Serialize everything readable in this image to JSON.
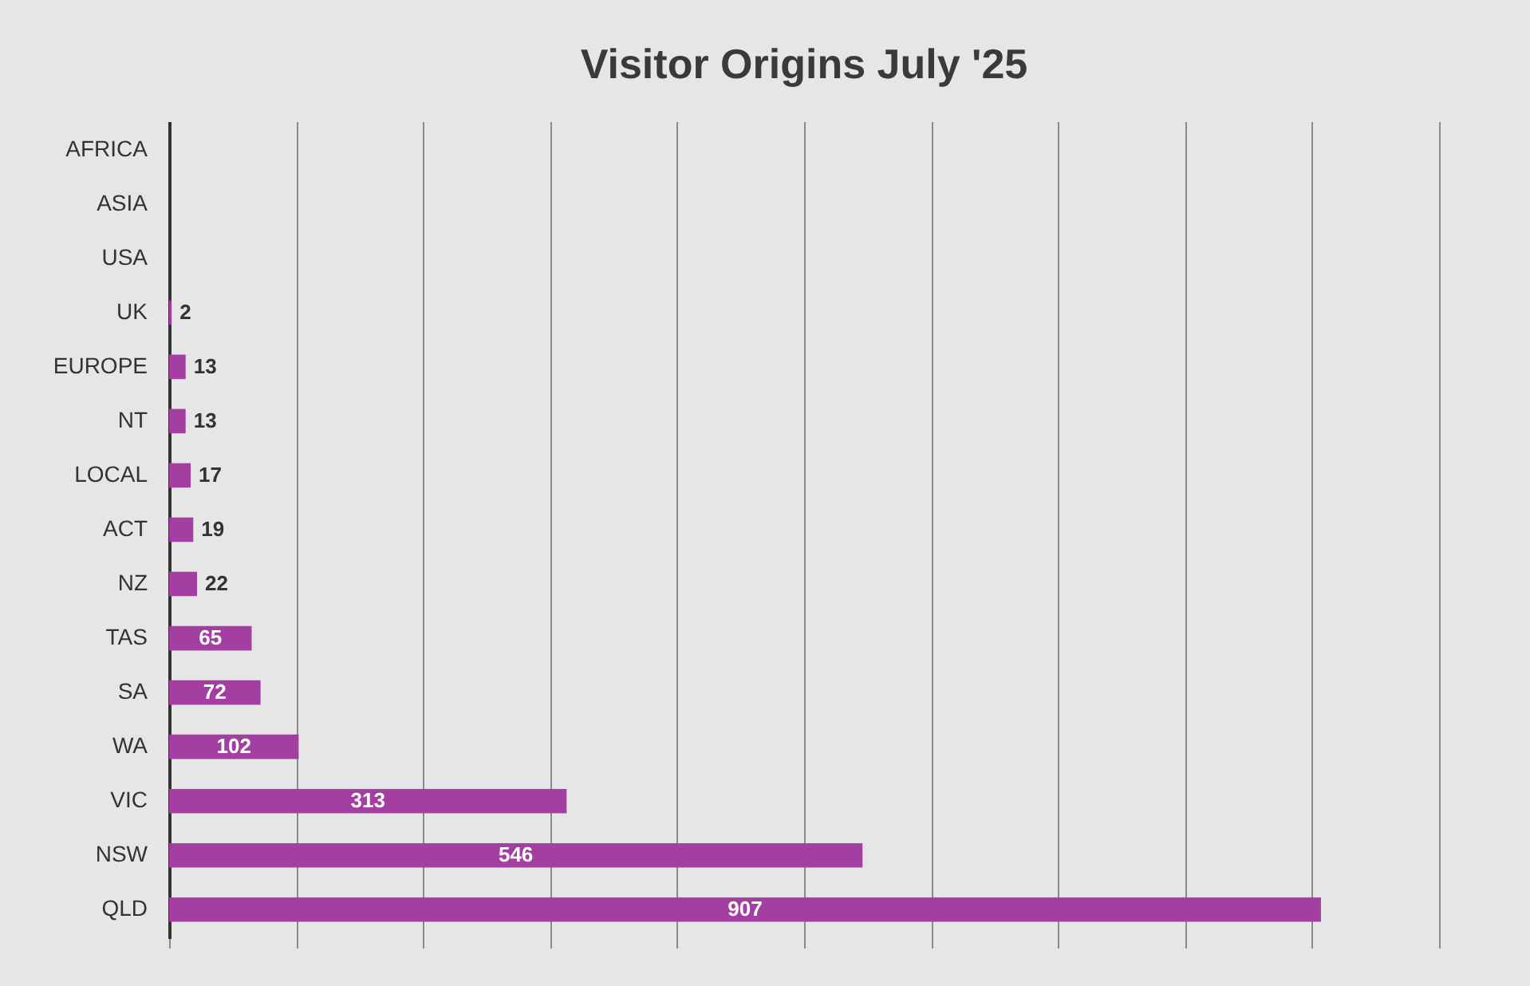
{
  "chart_data": {
    "type": "bar",
    "orientation": "horizontal",
    "title": "Visitor Origins July '25",
    "categories": [
      "AFRICA",
      "ASIA",
      "USA",
      "UK",
      "EUROPE",
      "NT",
      "LOCAL",
      "ACT",
      "NZ",
      "TAS",
      "SA",
      "WA",
      "VIC",
      "NSW",
      "QLD"
    ],
    "values": [
      0,
      0,
      0,
      2,
      13,
      13,
      17,
      19,
      22,
      65,
      72,
      102,
      313,
      546,
      907
    ],
    "value_labels": [
      null,
      null,
      null,
      "2",
      "13",
      "13",
      "17",
      "19",
      "22",
      "65",
      "72",
      "102",
      "313",
      "546",
      "907"
    ],
    "color": "#a23fa0",
    "xlim": [
      0,
      1000
    ],
    "xticks": [
      {
        "value": 0,
        "label": null
      },
      {
        "value": 100,
        "label": null
      },
      {
        "value": 200,
        "label": null
      },
      {
        "value": 300,
        "label": null
      },
      {
        "value": 400,
        "label": null
      },
      {
        "value": 500,
        "label": null
      },
      {
        "value": 600,
        "label": null
      },
      {
        "value": 700,
        "label": null
      },
      {
        "value": 800,
        "label": null
      },
      {
        "value": 900,
        "label": null
      },
      {
        "value": 1000,
        "label": null
      }
    ],
    "grid": "x",
    "tick_labels": "y"
  }
}
